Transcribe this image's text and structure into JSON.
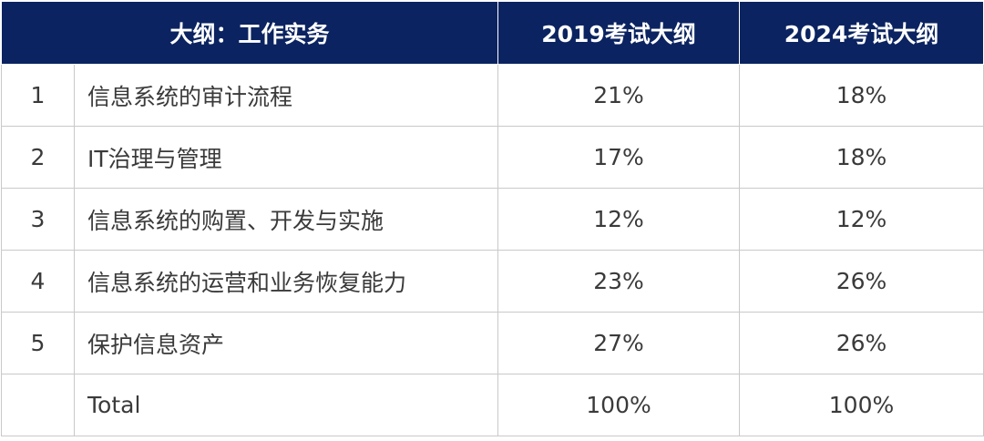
{
  "header": {
    "col_topic": "大纲：工作实务",
    "col_2019": "2019考试大纲",
    "col_2024": "2024考试大纲"
  },
  "rows": [
    {
      "num": "1",
      "topic": "信息系统的审计流程",
      "y2019": "21%",
      "y2024": "18%"
    },
    {
      "num": "2",
      "topic": "IT治理与管理",
      "y2019": "17%",
      "y2024": "18%"
    },
    {
      "num": "3",
      "topic": "信息系统的购置、开发与实施",
      "y2019": "12%",
      "y2024": "12%"
    },
    {
      "num": "4",
      "topic": "信息系统的运营和业务恢复能力",
      "y2019": "23%",
      "y2024": "26%"
    },
    {
      "num": "5",
      "topic": "保护信息资产",
      "y2019": "27%",
      "y2024": "26%"
    }
  ],
  "total": {
    "label": "Total",
    "y2019": "100%",
    "y2024": "100%"
  },
  "colors": {
    "header_bg": "#0b2360",
    "header_text": "#ffffff",
    "grid_line": "#c9c9c9",
    "body_text": "#3a3a3a"
  }
}
